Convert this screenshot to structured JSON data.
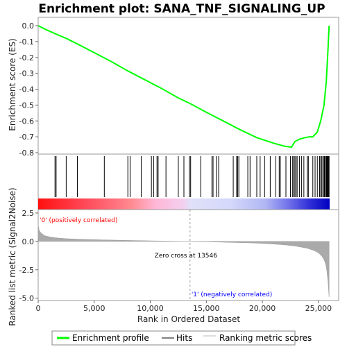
{
  "chart_data": {
    "type": "line",
    "title": "Enrichment plot: SANA_TNF_SIGNALING_UP",
    "xlabel": "Rank in Ordered Dataset",
    "ylabel_top": "Enrichment score (ES)",
    "ylabel_bottom": "Ranked list metric (Signal2Noise)",
    "xlim": [
      0,
      26000
    ],
    "x_ticks": [
      0,
      5000,
      10000,
      15000,
      20000,
      25000
    ],
    "es_ylim": [
      -0.8,
      0.05
    ],
    "es_ticks": [
      "0.0",
      "-0.1",
      "-0.2",
      "-0.3",
      "-0.4",
      "-0.5",
      "-0.6",
      "-0.7",
      "-0.8"
    ],
    "metric_ylim": [
      -5.2,
      2.8
    ],
    "metric_ticks": [
      "2.5",
      "0.0",
      "-2.5",
      "-5.0"
    ],
    "series": [
      {
        "name": "Enrichment profile",
        "color": "#00ff00",
        "x": [
          0,
          700,
          1500,
          2500,
          3500,
          5000,
          6500,
          8000,
          9500,
          11000,
          12500,
          13546,
          15000,
          16500,
          18000,
          19500,
          21000,
          22000,
          22600,
          22900,
          23300,
          23800,
          24200,
          24500,
          24900,
          25200,
          25500,
          25700,
          25850,
          25950
        ],
        "y": [
          0.0,
          -0.025,
          -0.05,
          -0.08,
          -0.115,
          -0.17,
          -0.225,
          -0.285,
          -0.34,
          -0.395,
          -0.455,
          -0.49,
          -0.545,
          -0.6,
          -0.655,
          -0.705,
          -0.74,
          -0.76,
          -0.765,
          -0.73,
          -0.715,
          -0.705,
          -0.7,
          -0.7,
          -0.67,
          -0.6,
          -0.5,
          -0.35,
          -0.15,
          0.0
        ]
      }
    ],
    "hits": [
      1500,
      1600,
      2500,
      3500,
      5900,
      8000,
      8200,
      9200,
      10100,
      10300,
      10600,
      10700,
      11400,
      12500,
      13000,
      13500,
      13600,
      14500,
      15500,
      15600,
      15900,
      16100,
      17400,
      17700,
      17800,
      17900,
      18700,
      18900,
      19500,
      19800,
      20200,
      20700,
      21200,
      21500,
      21600,
      22100,
      22500,
      22700,
      22800,
      22900,
      23000,
      23100,
      23300,
      23500,
      23700,
      24000,
      24100,
      24500,
      24700,
      24900,
      25100,
      25200,
      25300,
      25400,
      25500,
      25550,
      25600,
      25700,
      25750,
      25800,
      25850,
      25900,
      25950
    ],
    "metric": {
      "x": [
        0,
        100,
        300,
        600,
        1000,
        1500,
        2500,
        4000,
        6000,
        8000,
        10000,
        12000,
        13546,
        15000,
        17000,
        19000,
        20500,
        22000,
        23000,
        24000,
        24600,
        25000,
        25300,
        25500,
        25650,
        25750,
        25850,
        25950
      ],
      "y": [
        1.4,
        0.95,
        0.7,
        0.5,
        0.4,
        0.32,
        0.24,
        0.18,
        0.13,
        0.09,
        0.05,
        0.02,
        0.0,
        -0.03,
        -0.08,
        -0.13,
        -0.2,
        -0.3,
        -0.42,
        -0.6,
        -0.8,
        -1.0,
        -1.3,
        -1.6,
        -2.0,
        -2.6,
        -3.5,
        -4.9
      ]
    },
    "zero_cross": 13546,
    "annotations": {
      "pos_label": "'0' (positively correlated)",
      "neg_label": "'1' (negatively correlated)",
      "zero_label": "Zero cross at 13546"
    },
    "legend": [
      "Enrichment profile",
      "Hits",
      "Ranking metric scores"
    ],
    "colors": {
      "es": "#00ff00",
      "hits": "#000000",
      "metric": "#aaaaaa",
      "pos_text": "#ff0000",
      "neg_text": "#0000ff"
    }
  }
}
